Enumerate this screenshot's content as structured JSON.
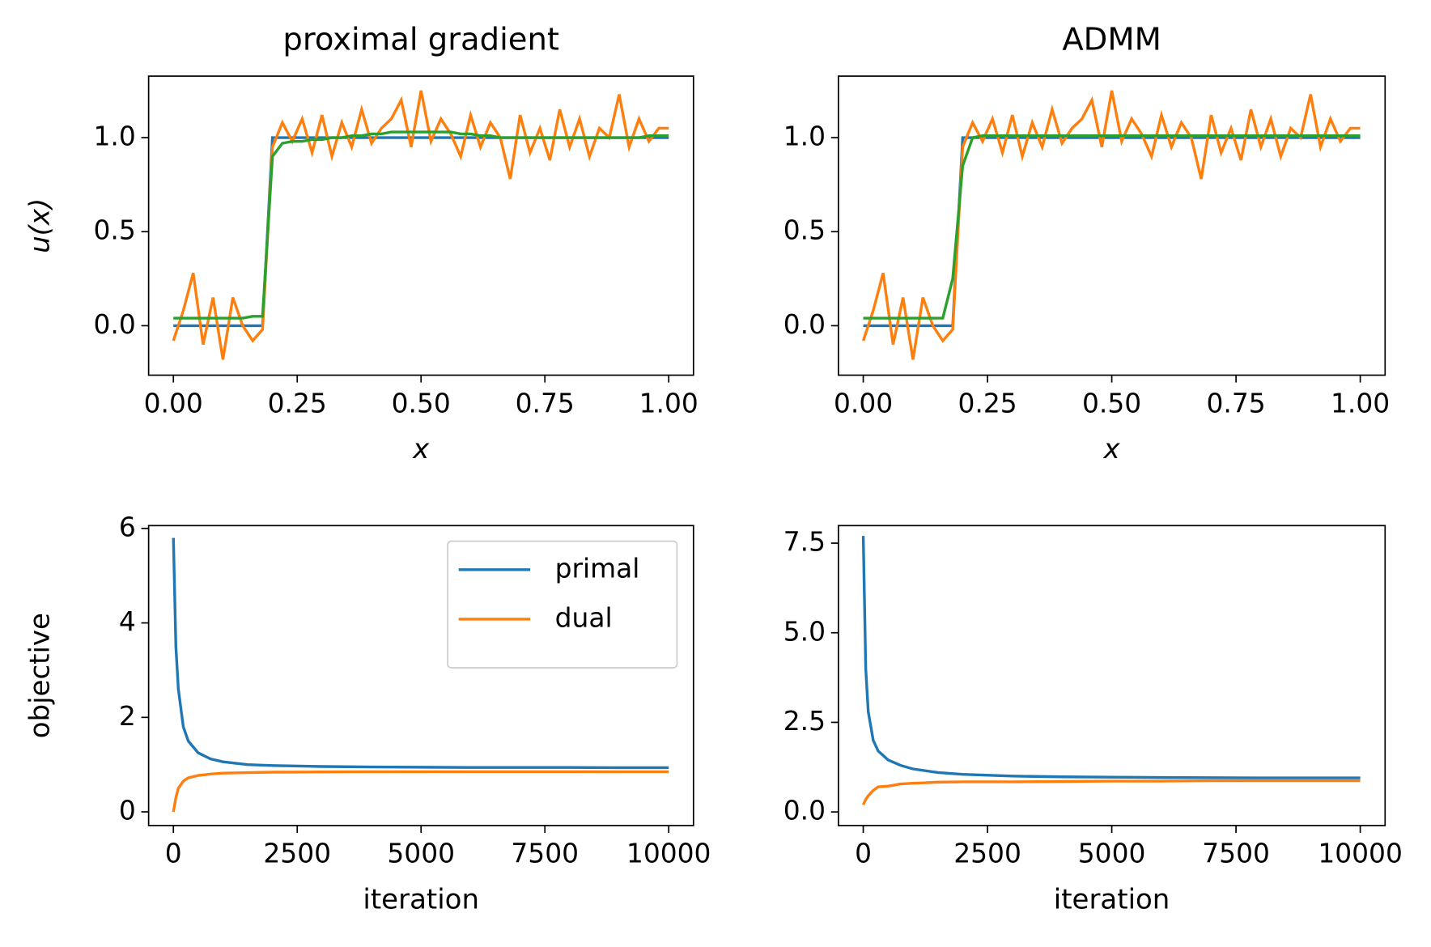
{
  "chart_data": [
    {
      "type": "line",
      "title": "proximal gradient",
      "xlabel": "x",
      "ylabel": "u(x)",
      "x": [
        0,
        0.02,
        0.04,
        0.06,
        0.08,
        0.1,
        0.12,
        0.14,
        0.16,
        0.18,
        0.2,
        0.22,
        0.24,
        0.26,
        0.28,
        0.3,
        0.32,
        0.34,
        0.36,
        0.38,
        0.4,
        0.42,
        0.44,
        0.46,
        0.48,
        0.5,
        0.52,
        0.54,
        0.56,
        0.58,
        0.6,
        0.62,
        0.64,
        0.66,
        0.68,
        0.7,
        0.72,
        0.74,
        0.76,
        0.78,
        0.8,
        0.82,
        0.84,
        0.86,
        0.88,
        0.9,
        0.92,
        0.94,
        0.96,
        0.98,
        1
      ],
      "series": [
        {
          "color": "#1f77b4",
          "values": [
            0,
            0,
            0,
            0,
            0,
            0,
            0,
            0,
            0,
            0,
            1,
            1,
            1,
            1,
            1,
            1,
            1,
            1,
            1,
            1,
            1,
            1,
            1,
            1,
            1,
            1,
            1,
            1,
            1,
            1,
            1,
            1,
            1,
            1,
            1,
            1,
            1,
            1,
            1,
            1,
            1,
            1,
            1,
            1,
            1,
            1,
            1,
            1,
            1,
            1,
            1
          ]
        },
        {
          "color": "#ff7f0e",
          "values": [
            -0.08,
            0.08,
            0.28,
            -0.1,
            0.15,
            -0.18,
            0.15,
            0,
            -0.08,
            -0.02,
            0.95,
            1.08,
            0.98,
            1.1,
            0.92,
            1.12,
            0.9,
            1.08,
            0.95,
            1.15,
            0.97,
            1.05,
            1.1,
            1.2,
            0.95,
            1.25,
            0.98,
            1.1,
            1.02,
            0.9,
            1.12,
            0.95,
            1.08,
            1,
            0.78,
            1.12,
            0.92,
            1.05,
            0.88,
            1.15,
            0.95,
            1.1,
            0.9,
            1.05,
            1,
            1.23,
            0.95,
            1.1,
            0.98,
            1.05,
            1.05
          ]
        },
        {
          "color": "#2ca02c",
          "values": [
            0.04,
            0.04,
            0.04,
            0.04,
            0.04,
            0.04,
            0.04,
            0.04,
            0.05,
            0.05,
            0.9,
            0.97,
            0.98,
            0.98,
            0.99,
            0.99,
            1,
            1,
            1.01,
            1.01,
            1.02,
            1.02,
            1.03,
            1.03,
            1.03,
            1.03,
            1.03,
            1.03,
            1.03,
            1.02,
            1.02,
            1.01,
            1.01,
            1,
            1,
            1,
            1,
            1,
            1,
            1,
            1,
            1,
            1,
            1,
            1,
            1,
            1,
            1,
            1.01,
            1.01,
            1.01
          ]
        }
      ],
      "xlim": [
        -0.05,
        1.05
      ],
      "ylim": [
        -0.263,
        1.327
      ],
      "xticks": [
        {
          "value": 0,
          "label": "0.00"
        },
        {
          "value": 0.25,
          "label": "0.25"
        },
        {
          "value": 0.5,
          "label": "0.50"
        },
        {
          "value": 0.75,
          "label": "0.75"
        },
        {
          "value": 1,
          "label": "1.00"
        }
      ],
      "yticks": [
        {
          "value": 0,
          "label": "0.0"
        },
        {
          "value": 0.5,
          "label": "0.5"
        },
        {
          "value": 1,
          "label": "1.0"
        }
      ]
    },
    {
      "type": "line",
      "title": "ADMM",
      "xlabel": "x",
      "x": [
        0,
        0.02,
        0.04,
        0.06,
        0.08,
        0.1,
        0.12,
        0.14,
        0.16,
        0.18,
        0.2,
        0.22,
        0.24,
        0.26,
        0.28,
        0.3,
        0.32,
        0.34,
        0.36,
        0.38,
        0.4,
        0.42,
        0.44,
        0.46,
        0.48,
        0.5,
        0.52,
        0.54,
        0.56,
        0.58,
        0.6,
        0.62,
        0.64,
        0.66,
        0.68,
        0.7,
        0.72,
        0.74,
        0.76,
        0.78,
        0.8,
        0.82,
        0.84,
        0.86,
        0.88,
        0.9,
        0.92,
        0.94,
        0.96,
        0.98,
        1
      ],
      "series": [
        {
          "color": "#1f77b4",
          "values": [
            0,
            0,
            0,
            0,
            0,
            0,
            0,
            0,
            0,
            0,
            1,
            1,
            1,
            1,
            1,
            1,
            1,
            1,
            1,
            1,
            1,
            1,
            1,
            1,
            1,
            1,
            1,
            1,
            1,
            1,
            1,
            1,
            1,
            1,
            1,
            1,
            1,
            1,
            1,
            1,
            1,
            1,
            1,
            1,
            1,
            1,
            1,
            1,
            1,
            1,
            1
          ]
        },
        {
          "color": "#ff7f0e",
          "values": [
            -0.08,
            0.08,
            0.28,
            -0.1,
            0.15,
            -0.18,
            0.15,
            0,
            -0.08,
            -0.02,
            0.95,
            1.08,
            0.98,
            1.1,
            0.92,
            1.12,
            0.9,
            1.08,
            0.95,
            1.15,
            0.97,
            1.05,
            1.1,
            1.2,
            0.95,
            1.25,
            0.98,
            1.1,
            1.02,
            0.9,
            1.12,
            0.95,
            1.08,
            1,
            0.78,
            1.12,
            0.92,
            1.05,
            0.88,
            1.15,
            0.95,
            1.1,
            0.9,
            1.05,
            1,
            1.23,
            0.95,
            1.1,
            0.98,
            1.05,
            1.05
          ]
        },
        {
          "color": "#2ca02c",
          "values": [
            0.04,
            0.04,
            0.04,
            0.04,
            0.04,
            0.04,
            0.04,
            0.04,
            0.04,
            0.25,
            0.85,
            1,
            1.01,
            1.01,
            1.01,
            1.01,
            1.01,
            1.01,
            1.01,
            1.01,
            1.01,
            1.01,
            1.01,
            1.01,
            1.01,
            1.01,
            1.01,
            1.01,
            1.01,
            1.01,
            1.01,
            1.01,
            1.01,
            1.01,
            1.01,
            1.01,
            1.01,
            1.01,
            1.01,
            1.01,
            1.01,
            1.01,
            1.01,
            1.01,
            1.01,
            1.01,
            1.01,
            1.01,
            1.01,
            1.01,
            1.01
          ]
        }
      ],
      "xlim": [
        -0.05,
        1.05
      ],
      "ylim": [
        -0.263,
        1.327
      ],
      "xticks": [
        {
          "value": 0,
          "label": "0.00"
        },
        {
          "value": 0.25,
          "label": "0.25"
        },
        {
          "value": 0.5,
          "label": "0.50"
        },
        {
          "value": 0.75,
          "label": "0.75"
        },
        {
          "value": 1,
          "label": "1.00"
        }
      ],
      "yticks": [
        {
          "value": 0,
          "label": "0.0"
        },
        {
          "value": 0.5,
          "label": "0.5"
        },
        {
          "value": 1,
          "label": "1.0"
        }
      ]
    },
    {
      "type": "line",
      "xlabel": "iteration",
      "ylabel": "objective",
      "legend": "upper right",
      "x": [
        0,
        50,
        100,
        200,
        300,
        500,
        750,
        1000,
        1500,
        2000,
        3000,
        4000,
        5000,
        6000,
        7000,
        8000,
        9000,
        10000
      ],
      "series": [
        {
          "name": "primal",
          "color": "#1f77b4",
          "values": [
            5.8,
            3.5,
            2.6,
            1.8,
            1.5,
            1.25,
            1.12,
            1.06,
            1,
            0.98,
            0.96,
            0.95,
            0.945,
            0.94,
            0.94,
            0.94,
            0.935,
            0.935
          ]
        },
        {
          "name": "dual",
          "color": "#ff7f0e",
          "values": [
            0,
            0.3,
            0.5,
            0.65,
            0.72,
            0.77,
            0.8,
            0.82,
            0.83,
            0.84,
            0.845,
            0.85,
            0.85,
            0.85,
            0.85,
            0.85,
            0.85,
            0.85
          ]
        }
      ],
      "xlim": [
        -500,
        10500
      ],
      "ylim": [
        -0.29,
        6.06
      ],
      "xticks": [
        0,
        2500,
        5000,
        7500,
        10000
      ],
      "yticks": [
        0,
        2,
        4,
        6
      ]
    },
    {
      "type": "line",
      "xlabel": "iteration",
      "x": [
        0,
        50,
        100,
        200,
        300,
        500,
        750,
        1000,
        1500,
        2000,
        3000,
        4000,
        5000,
        6000,
        7000,
        8000,
        9000,
        10000
      ],
      "series": [
        {
          "color": "#1f77b4",
          "values": [
            7.7,
            4,
            2.8,
            2,
            1.7,
            1.45,
            1.3,
            1.2,
            1.1,
            1.05,
            1,
            0.98,
            0.97,
            0.96,
            0.955,
            0.95,
            0.95,
            0.95
          ]
        },
        {
          "color": "#ff7f0e",
          "values": [
            0.2,
            0.35,
            0.45,
            0.6,
            0.7,
            0.72,
            0.78,
            0.8,
            0.83,
            0.84,
            0.84,
            0.85,
            0.86,
            0.86,
            0.87,
            0.87,
            0.87,
            0.87
          ]
        }
      ],
      "xlim": [
        -500,
        10500
      ],
      "ylim": [
        -0.38,
        7.99
      ],
      "xticks": [
        0,
        2500,
        5000,
        7500,
        10000
      ],
      "yticks": [
        {
          "value": 0,
          "label": "0.0"
        },
        {
          "value": 2.5,
          "label": "2.5"
        },
        {
          "value": 5,
          "label": "5.0"
        },
        {
          "value": 7.5,
          "label": "7.5"
        }
      ]
    }
  ]
}
